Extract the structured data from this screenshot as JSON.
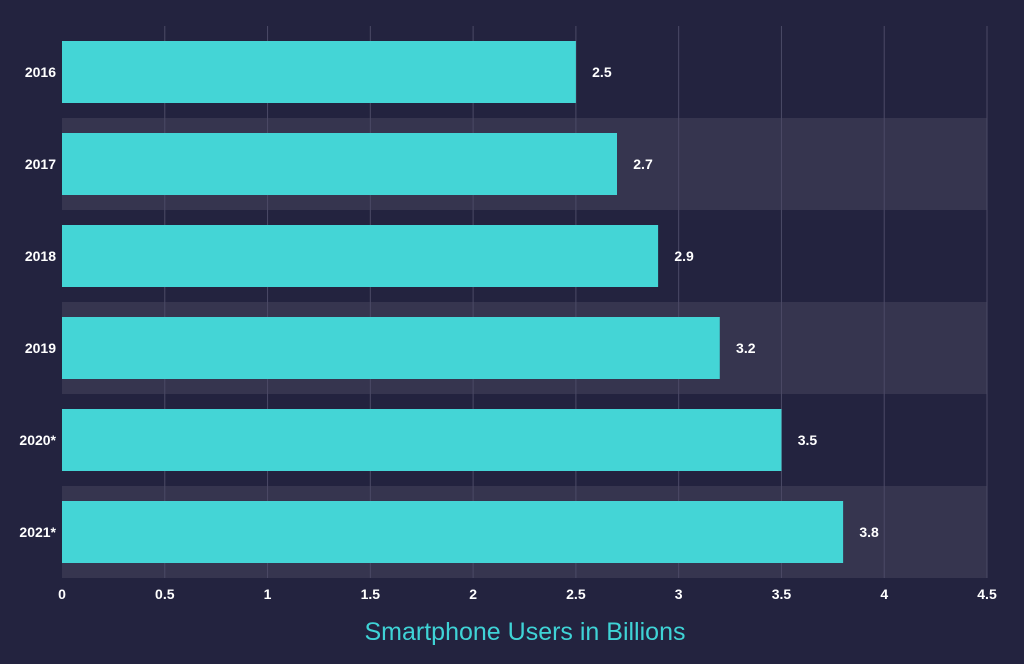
{
  "chart_data": {
    "type": "bar",
    "orientation": "horizontal",
    "categories": [
      "2016",
      "2017",
      "2018",
      "2019",
      "2020*",
      "2021*"
    ],
    "values": [
      2.5,
      2.7,
      2.9,
      3.2,
      3.5,
      3.8
    ],
    "value_labels": [
      "2.5",
      "2.7",
      "2.9",
      "3.2",
      "3.5",
      "3.8"
    ],
    "xlabel": "Smartphone Users in Billions",
    "ylabel": "",
    "title": "",
    "xlim": [
      0,
      4.5
    ],
    "x_ticks": [
      "0",
      "0.5",
      "1",
      "1.5",
      "2",
      "2.5",
      "3",
      "3.5",
      "4",
      "4.5"
    ],
    "grid": true,
    "legend": "none"
  },
  "colors": {
    "background": "#23233f",
    "band": "#36354f",
    "bar": "#44d5d6",
    "grid": "#4b4a66",
    "text": "#ffffff",
    "axis_title": "#3fd3d6"
  }
}
